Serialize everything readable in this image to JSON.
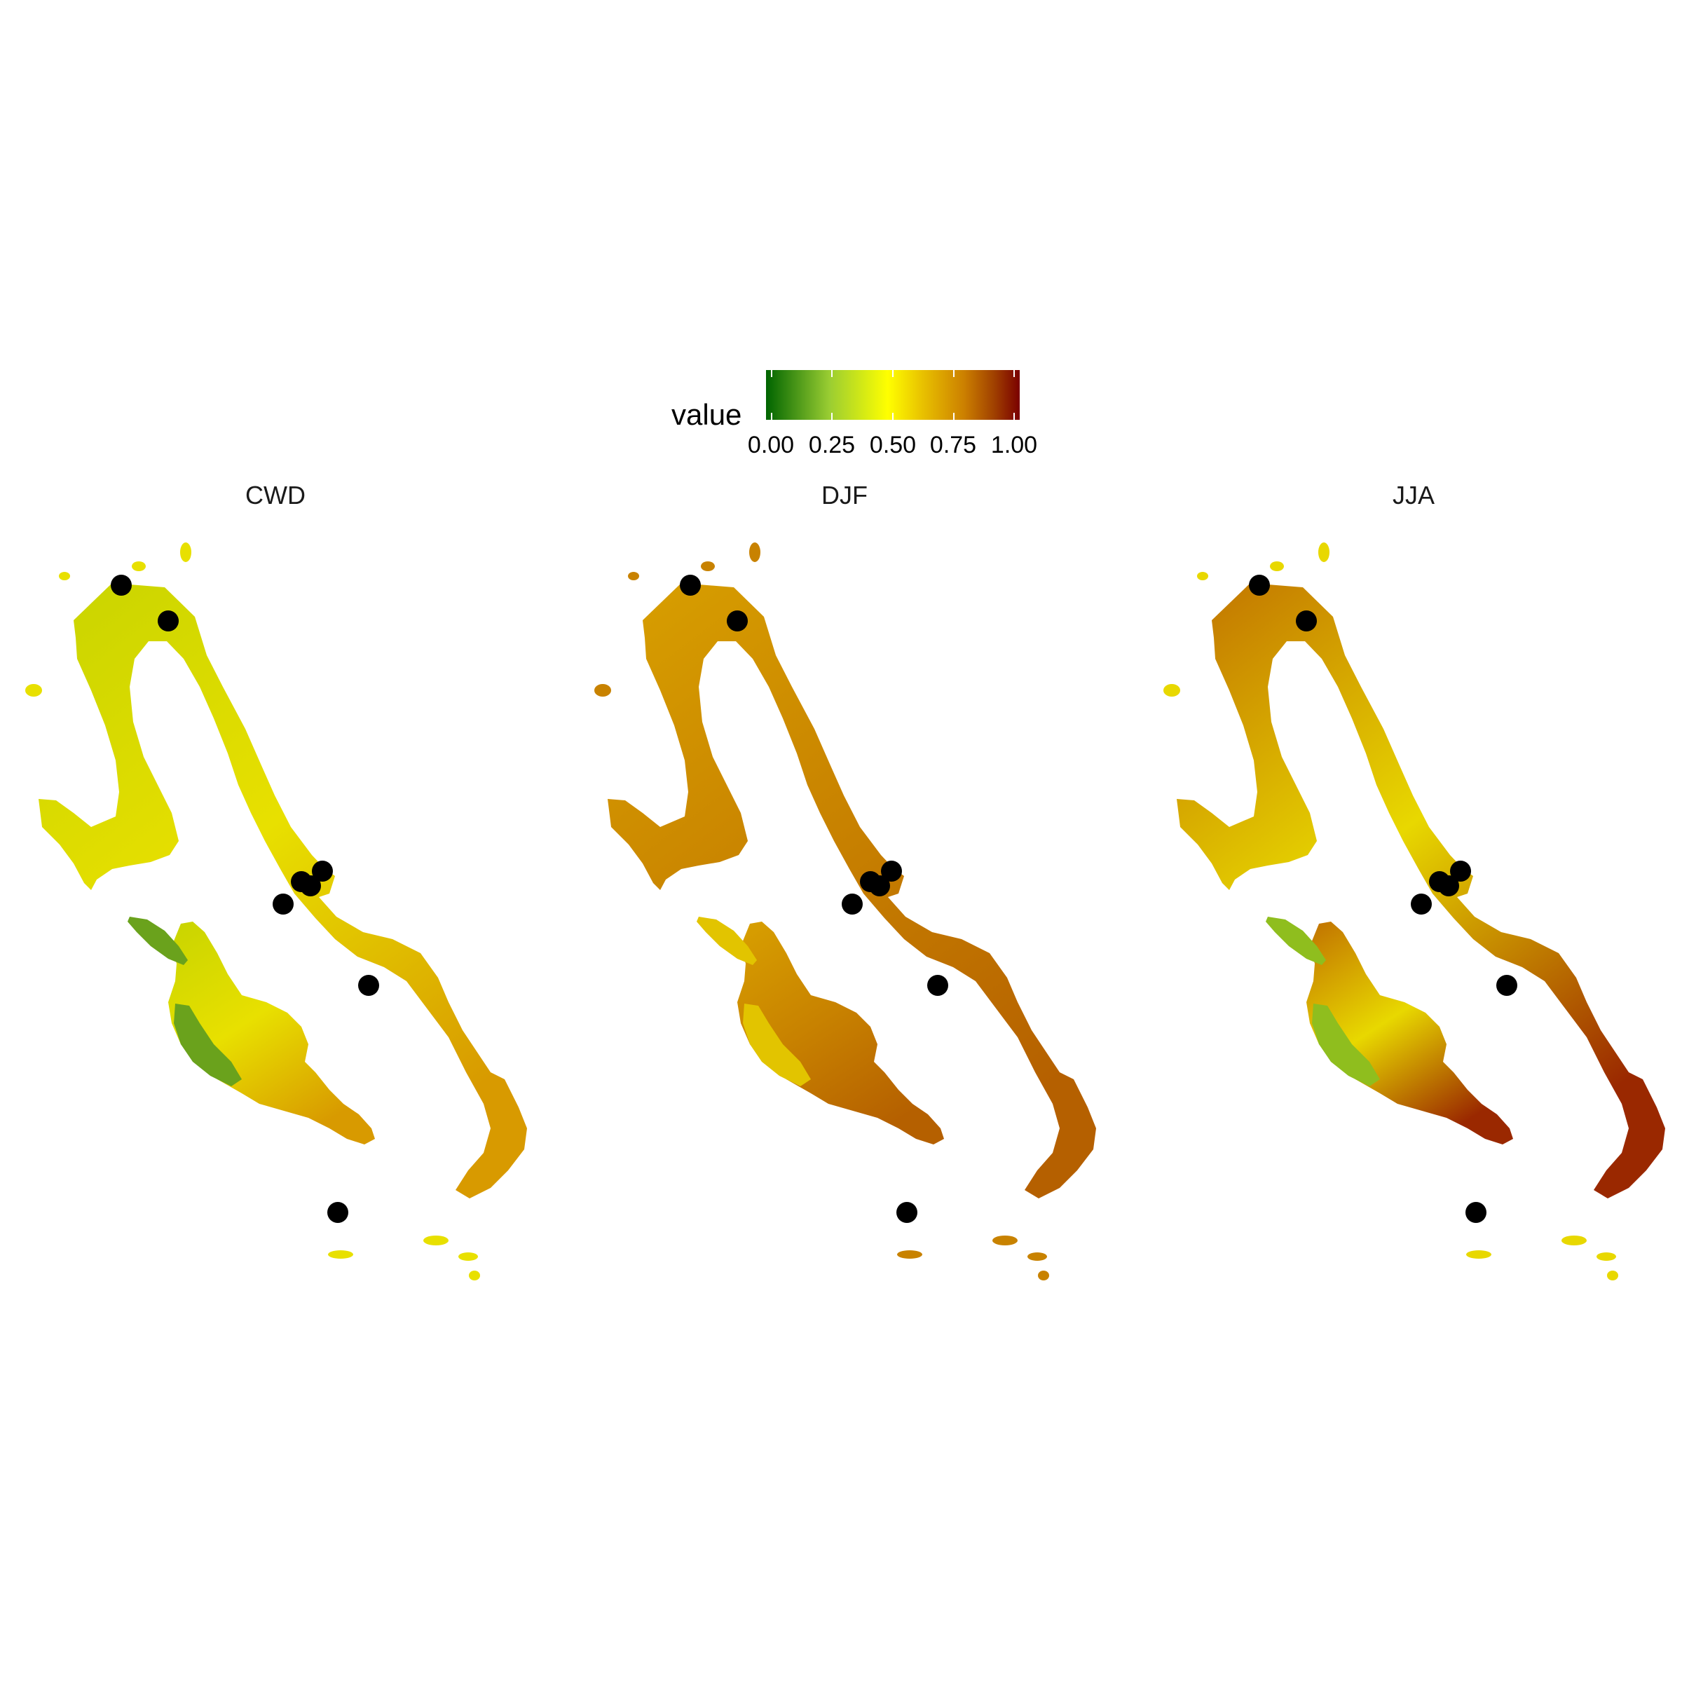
{
  "legend": {
    "title": "value",
    "breaks": [
      "0.00",
      "0.25",
      "0.50",
      "0.75",
      "1.00"
    ],
    "colors": [
      "#006400",
      "#9acd32",
      "#ffff00",
      "#e8c000",
      "#cc8000",
      "#a04000",
      "#7a0000"
    ]
  },
  "panels": [
    {
      "title": "CWD",
      "fill_top": "#c8d400",
      "fill_mid": "#e8e000",
      "fill_bottom": "#d89a00",
      "patch_color": "#6aa21c"
    },
    {
      "title": "DJF",
      "fill_top": "#d8a000",
      "fill_mid": "#c88200",
      "fill_bottom": "#b56000",
      "patch_color": "#e2c400"
    },
    {
      "title": "JJA",
      "fill_top": "#c07000",
      "fill_mid": "#e8d800",
      "fill_bottom": "#9a2800",
      "patch_color": "#8fbe1e"
    }
  ],
  "site_count": 8
}
